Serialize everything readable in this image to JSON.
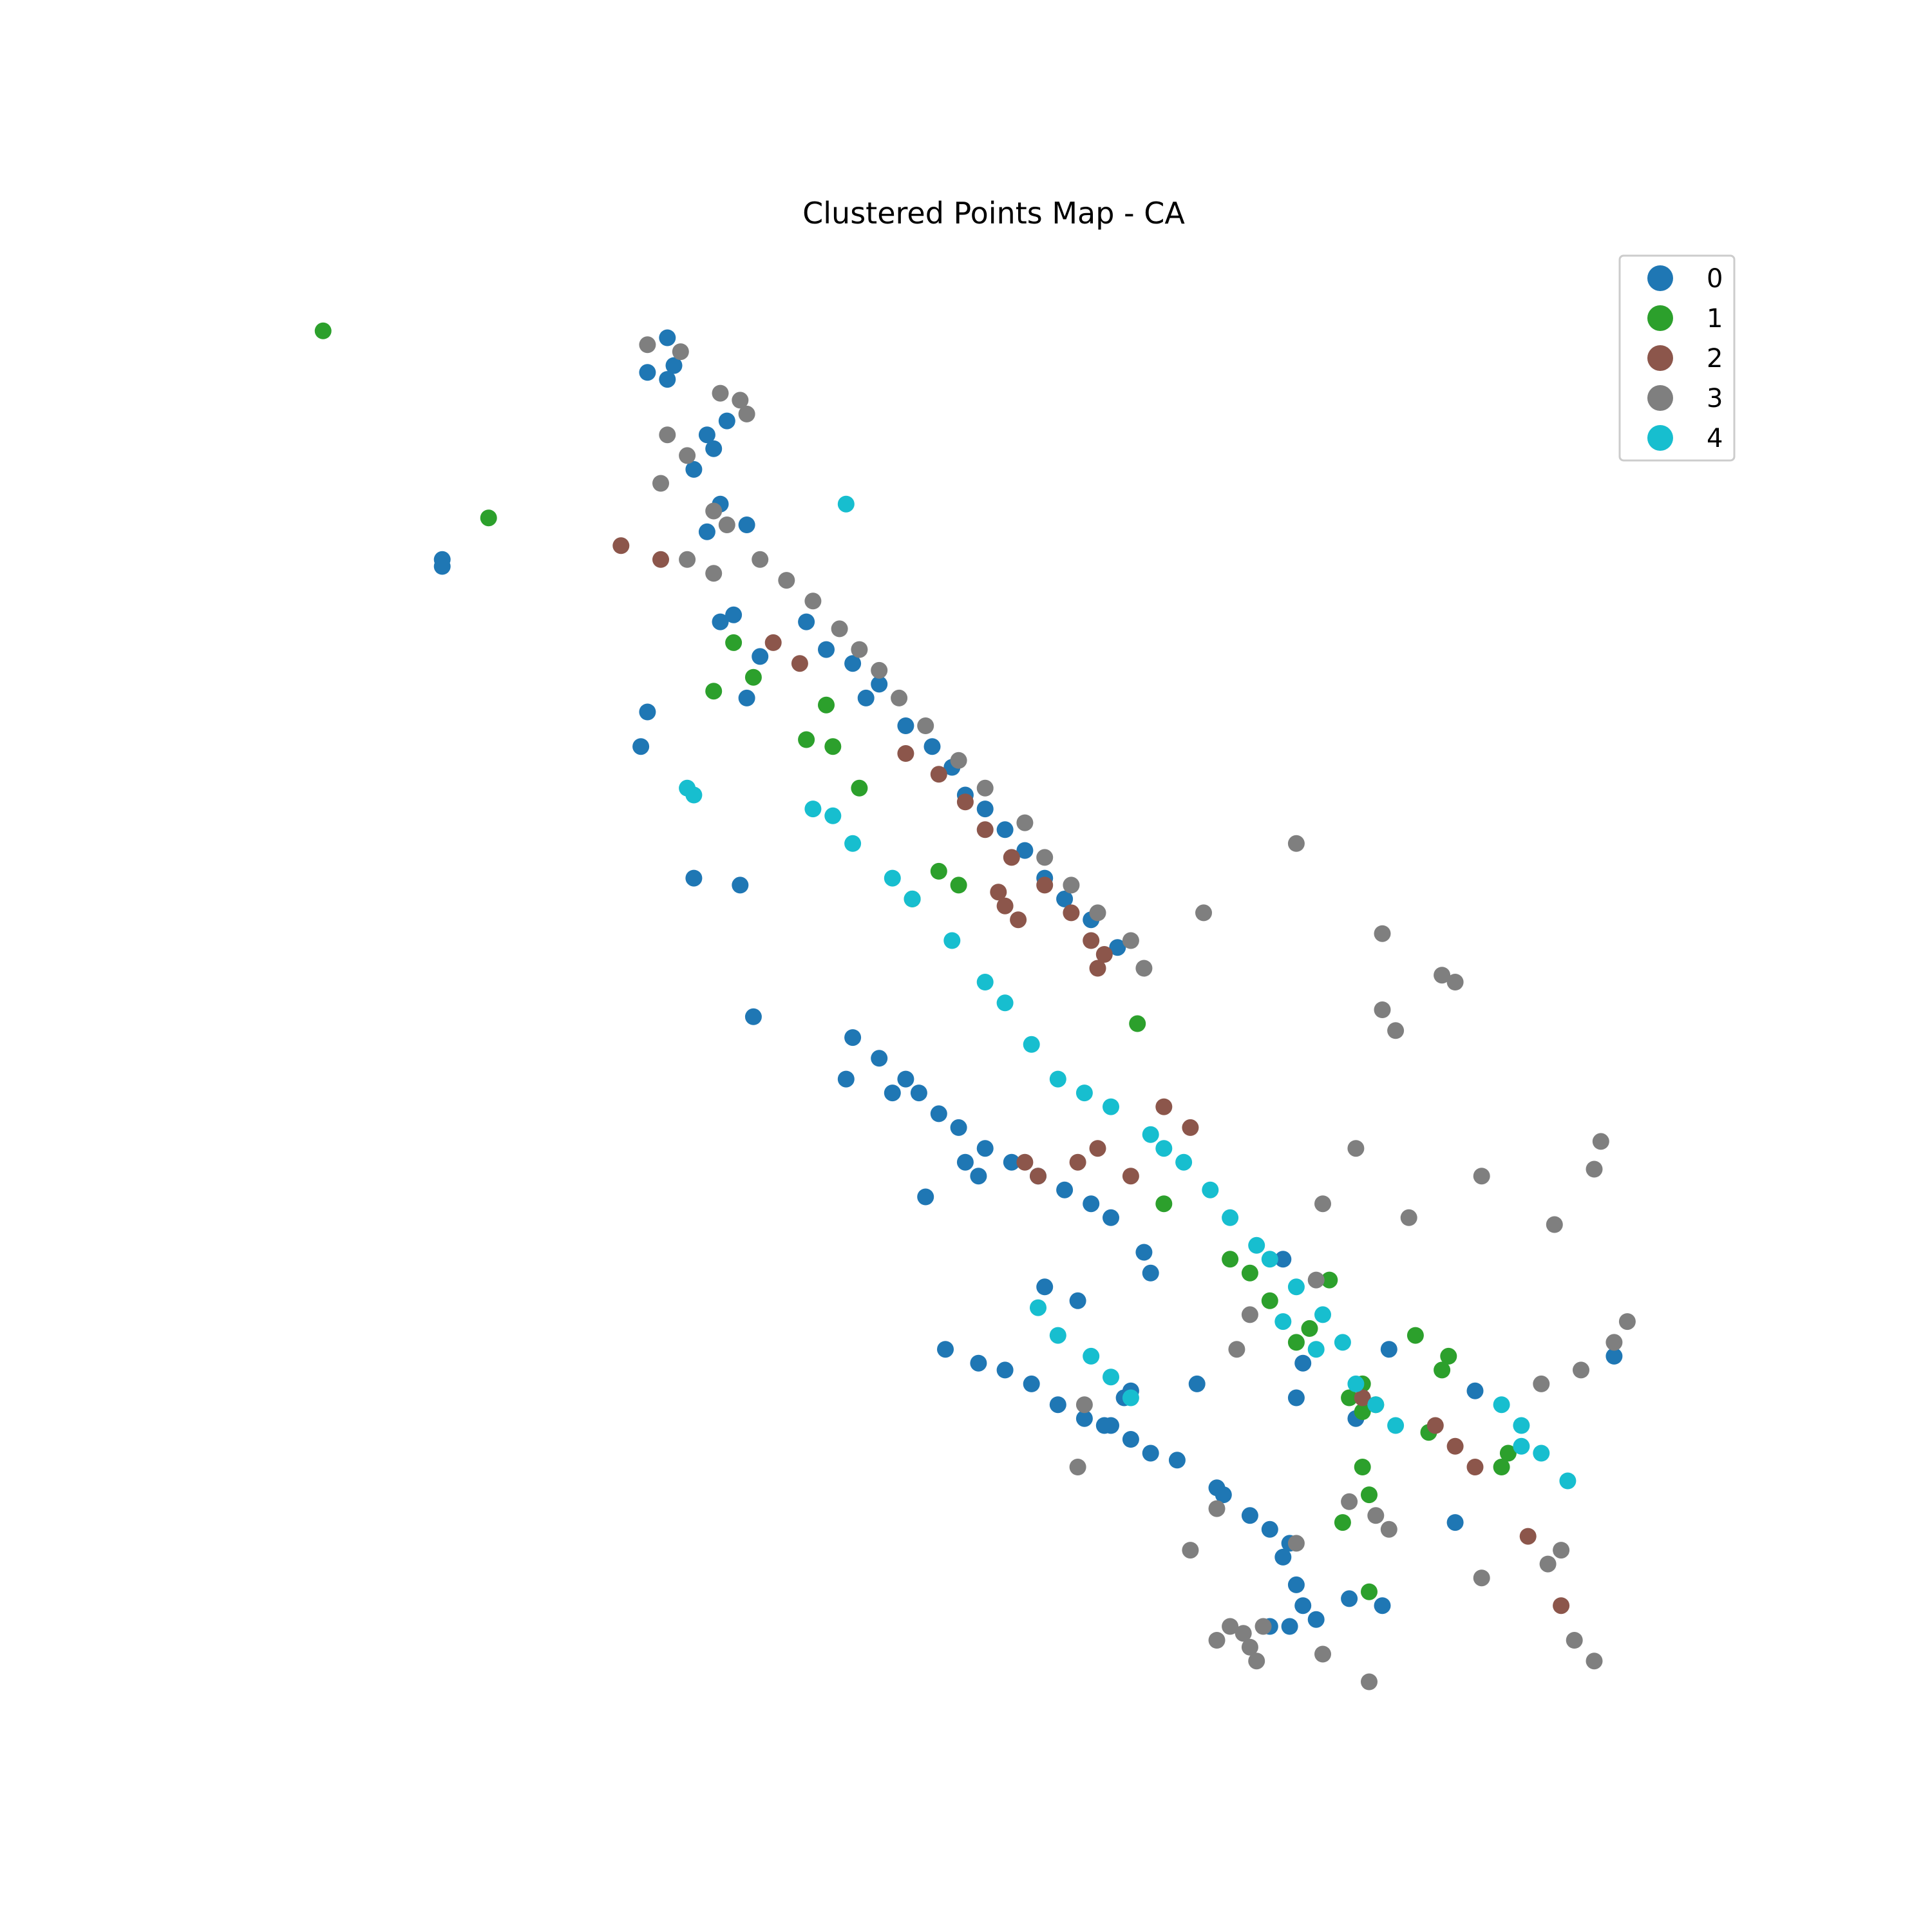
{
  "figure": {
    "title": "Clustered Points Map - CA"
  },
  "legend": {
    "placement": "top-right",
    "entries": [
      {
        "label": "0",
        "color": "#1f77b4"
      },
      {
        "label": "1",
        "color": "#2ca02c"
      },
      {
        "label": "2",
        "color": "#8c564b"
      },
      {
        "label": "3",
        "color": "#7f7f7f"
      },
      {
        "label": "4",
        "color": "#17becf"
      }
    ]
  },
  "chart_data": {
    "type": "scatter",
    "title": "Clustered Points Map - CA",
    "axes_visible": false,
    "grid": false,
    "xlim": [
      -124.6,
      -113.9
    ],
    "ylim": [
      32.3,
      42.2
    ],
    "series": [
      {
        "name": "0",
        "color": "#1f77b4",
        "points": [
          [
            -121.7,
            41.9
          ],
          [
            -121.65,
            41.7
          ],
          [
            -121.7,
            41.6
          ],
          [
            -121.85,
            41.65
          ],
          [
            -121.25,
            41.3
          ],
          [
            -121.4,
            41.2
          ],
          [
            -121.35,
            41.1
          ],
          [
            -121.5,
            40.95
          ],
          [
            -121.3,
            40.7
          ],
          [
            -121.1,
            40.55
          ],
          [
            -121.4,
            40.5
          ],
          [
            -123.4,
            40.3
          ],
          [
            -123.4,
            40.25
          ],
          [
            -121.3,
            39.85
          ],
          [
            -121.2,
            39.9
          ],
          [
            -121.0,
            39.6
          ],
          [
            -120.65,
            39.85
          ],
          [
            -120.5,
            39.65
          ],
          [
            -120.3,
            39.55
          ],
          [
            -120.1,
            39.4
          ],
          [
            -121.1,
            39.3
          ],
          [
            -121.85,
            39.2
          ],
          [
            -121.9,
            38.95
          ],
          [
            -120.2,
            39.3
          ],
          [
            -119.9,
            39.1
          ],
          [
            -119.7,
            38.95
          ],
          [
            -119.55,
            38.8
          ],
          [
            -119.45,
            38.6
          ],
          [
            -119.3,
            38.5
          ],
          [
            -119.15,
            38.35
          ],
          [
            -119.0,
            38.2
          ],
          [
            -118.85,
            38.0
          ],
          [
            -118.7,
            37.85
          ],
          [
            -118.5,
            37.7
          ],
          [
            -118.3,
            37.5
          ],
          [
            -121.5,
            38.0
          ],
          [
            -121.15,
            37.95
          ],
          [
            -121.05,
            37.0
          ],
          [
            -120.3,
            36.85
          ],
          [
            -120.1,
            36.7
          ],
          [
            -119.9,
            36.55
          ],
          [
            -119.8,
            36.45
          ],
          [
            -120.35,
            36.55
          ],
          [
            -120.0,
            36.45
          ],
          [
            -119.65,
            36.3
          ],
          [
            -119.5,
            36.2
          ],
          [
            -119.3,
            36.05
          ],
          [
            -119.1,
            35.95
          ],
          [
            -118.9,
            35.85
          ],
          [
            -118.7,
            35.75
          ],
          [
            -118.5,
            35.65
          ],
          [
            -118.35,
            35.55
          ],
          [
            -118.1,
            35.3
          ],
          [
            -118.05,
            35.15
          ],
          [
            -119.6,
            34.6
          ],
          [
            -119.35,
            34.5
          ],
          [
            -119.15,
            34.45
          ],
          [
            -118.95,
            34.35
          ],
          [
            -118.75,
            34.2
          ],
          [
            -118.55,
            34.1
          ],
          [
            -118.4,
            34.05
          ],
          [
            -118.2,
            33.95
          ],
          [
            -118.05,
            33.85
          ],
          [
            -118.25,
            34.25
          ],
          [
            -118.35,
            34.05
          ],
          [
            -117.85,
            33.8
          ],
          [
            -117.55,
            33.6
          ],
          [
            -117.5,
            33.55
          ],
          [
            -117.3,
            33.4
          ],
          [
            -117.15,
            33.3
          ],
          [
            -117.05,
            33.1
          ],
          [
            -116.95,
            32.9
          ],
          [
            -116.9,
            32.75
          ],
          [
            -116.55,
            32.8
          ],
          [
            -116.3,
            32.75
          ],
          [
            -117.0,
            33.2
          ],
          [
            -117.15,
            32.6
          ],
          [
            -117.0,
            32.6
          ],
          [
            -116.8,
            32.65
          ],
          [
            -116.9,
            34.5
          ],
          [
            -116.95,
            34.25
          ],
          [
            -116.5,
            34.1
          ],
          [
            -117.05,
            35.25
          ],
          [
            -116.25,
            34.6
          ],
          [
            -115.6,
            34.3
          ],
          [
            -114.55,
            34.55
          ],
          [
            -115.75,
            33.35
          ],
          [
            -118.2,
            34.3
          ],
          [
            -117.7,
            34.35
          ],
          [
            -119.35,
            35.85
          ],
          [
            -119.45,
            35.95
          ],
          [
            -119.75,
            35.7
          ],
          [
            -118.85,
            35.05
          ],
          [
            -118.6,
            34.95
          ]
        ]
      },
      {
        "name": "1",
        "color": "#2ca02c",
        "points": [
          [
            -124.3,
            41.95
          ],
          [
            -123.05,
            40.6
          ],
          [
            -121.2,
            39.7
          ],
          [
            -121.05,
            39.45
          ],
          [
            -121.35,
            39.35
          ],
          [
            -120.5,
            39.25
          ],
          [
            -120.65,
            39.0
          ],
          [
            -120.45,
            38.95
          ],
          [
            -120.25,
            38.65
          ],
          [
            -119.65,
            38.05
          ],
          [
            -119.5,
            37.95
          ],
          [
            -119.85,
            37.85
          ],
          [
            -118.15,
            36.95
          ],
          [
            -117.95,
            35.65
          ],
          [
            -117.45,
            35.25
          ],
          [
            -117.3,
            35.15
          ],
          [
            -117.15,
            34.95
          ],
          [
            -116.7,
            35.1
          ],
          [
            -116.05,
            34.7
          ],
          [
            -115.8,
            34.55
          ],
          [
            -115.85,
            34.45
          ],
          [
            -116.85,
            34.75
          ],
          [
            -116.95,
            34.65
          ],
          [
            -116.35,
            34.2
          ],
          [
            -116.45,
            33.75
          ],
          [
            -116.4,
            33.55
          ],
          [
            -116.6,
            33.35
          ],
          [
            -116.4,
            32.85
          ],
          [
            -115.4,
            33.75
          ],
          [
            -115.35,
            33.85
          ],
          [
            -115.95,
            34.0
          ],
          [
            -116.45,
            34.35
          ],
          [
            -116.55,
            34.25
          ],
          [
            -116.45,
            34.15
          ]
        ]
      },
      {
        "name": "2",
        "color": "#8c564b",
        "points": [
          [
            -122.05,
            40.4
          ],
          [
            -121.75,
            40.3
          ],
          [
            -120.9,
            39.7
          ],
          [
            -120.7,
            39.55
          ],
          [
            -119.9,
            38.9
          ],
          [
            -119.65,
            38.75
          ],
          [
            -119.45,
            38.55
          ],
          [
            -119.3,
            38.35
          ],
          [
            -119.1,
            38.15
          ],
          [
            -118.85,
            37.95
          ],
          [
            -118.65,
            37.75
          ],
          [
            -118.5,
            37.55
          ],
          [
            -118.4,
            37.45
          ],
          [
            -119.2,
            37.9
          ],
          [
            -119.15,
            37.8
          ],
          [
            -119.05,
            37.7
          ],
          [
            -118.45,
            37.35
          ],
          [
            -117.95,
            36.35
          ],
          [
            -117.75,
            36.2
          ],
          [
            -119.0,
            35.95
          ],
          [
            -118.9,
            35.85
          ],
          [
            -118.6,
            35.95
          ],
          [
            -118.45,
            36.05
          ],
          [
            -118.2,
            35.85
          ],
          [
            -116.45,
            34.25
          ],
          [
            -115.9,
            34.05
          ],
          [
            -115.75,
            33.9
          ],
          [
            -115.6,
            33.75
          ],
          [
            -115.2,
            33.25
          ],
          [
            -114.95,
            32.75
          ]
        ]
      },
      {
        "name": "3",
        "color": "#7f7f7f",
        "points": [
          [
            -121.85,
            41.85
          ],
          [
            -121.6,
            41.8
          ],
          [
            -121.3,
            41.5
          ],
          [
            -121.15,
            41.45
          ],
          [
            -121.1,
            41.35
          ],
          [
            -121.7,
            41.2
          ],
          [
            -121.55,
            41.05
          ],
          [
            -121.75,
            40.85
          ],
          [
            -121.35,
            40.65
          ],
          [
            -121.25,
            40.55
          ],
          [
            -121.55,
            40.3
          ],
          [
            -121.35,
            40.2
          ],
          [
            -121.0,
            40.3
          ],
          [
            -120.8,
            40.15
          ],
          [
            -120.6,
            40.0
          ],
          [
            -120.4,
            39.8
          ],
          [
            -120.25,
            39.65
          ],
          [
            -120.1,
            39.5
          ],
          [
            -119.95,
            39.3
          ],
          [
            -119.75,
            39.1
          ],
          [
            -119.5,
            38.85
          ],
          [
            -119.3,
            38.65
          ],
          [
            -119.0,
            38.4
          ],
          [
            -118.85,
            38.15
          ],
          [
            -118.65,
            37.95
          ],
          [
            -118.45,
            37.75
          ],
          [
            -118.2,
            37.55
          ],
          [
            -118.1,
            37.35
          ],
          [
            -117.65,
            37.75
          ],
          [
            -116.95,
            38.25
          ],
          [
            -116.3,
            37.6
          ],
          [
            -115.85,
            37.3
          ],
          [
            -115.75,
            37.25
          ],
          [
            -116.3,
            37.05
          ],
          [
            -116.2,
            36.9
          ],
          [
            -116.5,
            36.05
          ],
          [
            -116.75,
            35.65
          ],
          [
            -116.1,
            35.55
          ],
          [
            -115.55,
            35.85
          ],
          [
            -115.0,
            35.5
          ],
          [
            -114.65,
            36.1
          ],
          [
            -114.7,
            35.9
          ],
          [
            -116.8,
            35.1
          ],
          [
            -117.3,
            34.85
          ],
          [
            -117.4,
            34.6
          ],
          [
            -118.55,
            34.2
          ],
          [
            -118.6,
            33.75
          ],
          [
            -117.75,
            33.15
          ],
          [
            -117.55,
            33.45
          ],
          [
            -116.55,
            33.5
          ],
          [
            -116.35,
            33.4
          ],
          [
            -116.25,
            33.3
          ],
          [
            -116.95,
            33.2
          ],
          [
            -117.55,
            32.5
          ],
          [
            -117.45,
            32.6
          ],
          [
            -117.35,
            32.55
          ],
          [
            -117.2,
            32.6
          ],
          [
            -116.75,
            32.4
          ],
          [
            -115.55,
            32.95
          ],
          [
            -115.05,
            33.05
          ],
          [
            -114.95,
            33.15
          ],
          [
            -114.85,
            32.5
          ],
          [
            -114.7,
            32.35
          ],
          [
            -115.1,
            34.35
          ],
          [
            -114.8,
            34.45
          ],
          [
            -114.55,
            34.65
          ],
          [
            -114.45,
            34.8
          ],
          [
            -117.3,
            32.45
          ],
          [
            -117.25,
            32.35
          ],
          [
            -116.4,
            32.2
          ]
        ]
      },
      {
        "name": "4",
        "color": "#17becf",
        "points": [
          [
            -120.35,
            40.7
          ],
          [
            -121.55,
            38.65
          ],
          [
            -121.5,
            38.6
          ],
          [
            -120.6,
            38.5
          ],
          [
            -120.45,
            38.45
          ],
          [
            -120.3,
            38.25
          ],
          [
            -120.0,
            38.0
          ],
          [
            -119.85,
            37.85
          ],
          [
            -119.55,
            37.55
          ],
          [
            -119.3,
            37.25
          ],
          [
            -119.15,
            37.1
          ],
          [
            -118.95,
            36.8
          ],
          [
            -118.75,
            36.55
          ],
          [
            -118.55,
            36.45
          ],
          [
            -118.35,
            36.35
          ],
          [
            -118.05,
            36.15
          ],
          [
            -117.95,
            36.05
          ],
          [
            -117.8,
            35.95
          ],
          [
            -117.6,
            35.75
          ],
          [
            -117.45,
            35.55
          ],
          [
            -117.25,
            35.35
          ],
          [
            -117.15,
            35.25
          ],
          [
            -116.95,
            35.05
          ],
          [
            -116.75,
            34.85
          ],
          [
            -116.6,
            34.65
          ],
          [
            -115.4,
            34.2
          ],
          [
            -115.25,
            34.05
          ],
          [
            -115.1,
            33.85
          ],
          [
            -114.9,
            33.65
          ],
          [
            -118.9,
            34.9
          ],
          [
            -118.75,
            34.7
          ],
          [
            -118.5,
            34.55
          ],
          [
            -118.35,
            34.4
          ],
          [
            -118.2,
            34.25
          ],
          [
            -117.05,
            34.8
          ],
          [
            -116.8,
            34.6
          ],
          [
            -116.5,
            34.35
          ],
          [
            -116.35,
            34.2
          ],
          [
            -116.2,
            34.05
          ],
          [
            -115.25,
            33.9
          ]
        ]
      }
    ]
  }
}
